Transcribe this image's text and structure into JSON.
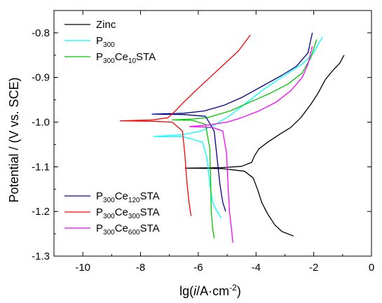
{
  "chart_data": {
    "type": "line",
    "xlabel": "lg(i/A·cm⁻²)",
    "ylabel": "Potential / (V vs. SCE)",
    "xlim": [
      -11,
      0
    ],
    "ylim": [
      -1.3,
      -0.75
    ],
    "xticks": [
      -10,
      -8,
      -6,
      -4,
      -2,
      0
    ],
    "yticks": [
      -1.3,
      -1.2,
      -1.1,
      -1.0,
      -0.9,
      -0.8
    ],
    "grid": false,
    "legend_groups": [
      "top-left",
      "bottom-left"
    ],
    "series": [
      {
        "name": "Zinc",
        "color": "#000000",
        "legend_group": 0,
        "points": [
          [
            -2.7,
            -1.255
          ],
          [
            -3.1,
            -1.245
          ],
          [
            -3.35,
            -1.23
          ],
          [
            -3.6,
            -1.205
          ],
          [
            -3.8,
            -1.18
          ],
          [
            -3.95,
            -1.15
          ],
          [
            -4.1,
            -1.125
          ],
          [
            -4.4,
            -1.11
          ],
          [
            -5.2,
            -1.104
          ],
          [
            -6.45,
            -1.103
          ],
          [
            -5.2,
            -1.102
          ],
          [
            -4.5,
            -1.099
          ],
          [
            -4.15,
            -1.09
          ],
          [
            -4.05,
            -1.075
          ],
          [
            -3.9,
            -1.06
          ],
          [
            -3.6,
            -1.045
          ],
          [
            -3.2,
            -1.028
          ],
          [
            -2.8,
            -1.012
          ],
          [
            -2.45,
            -0.99
          ],
          [
            -2.1,
            -0.96
          ],
          [
            -1.85,
            -0.935
          ],
          [
            -1.6,
            -0.905
          ],
          [
            -1.35,
            -0.885
          ],
          [
            -1.1,
            -0.868
          ],
          [
            -0.95,
            -0.85
          ]
        ]
      },
      {
        "name": "P300",
        "label_parts": [
          {
            "t": "P"
          },
          {
            "t": "300",
            "sub": true
          }
        ],
        "color": "#00ffff",
        "legend_group": 0,
        "points": [
          [
            -5.2,
            -1.215
          ],
          [
            -5.35,
            -1.2
          ],
          [
            -5.5,
            -1.18
          ],
          [
            -5.6,
            -1.14
          ],
          [
            -5.7,
            -1.08
          ],
          [
            -5.85,
            -1.045
          ],
          [
            -6.5,
            -1.033
          ],
          [
            -7.55,
            -1.032
          ],
          [
            -6.5,
            -1.028
          ],
          [
            -5.9,
            -1.02
          ],
          [
            -5.4,
            -1.005
          ],
          [
            -4.9,
            -0.985
          ],
          [
            -4.3,
            -0.955
          ],
          [
            -3.7,
            -0.925
          ],
          [
            -3.0,
            -0.895
          ],
          [
            -2.4,
            -0.87
          ],
          [
            -2.0,
            -0.845
          ],
          [
            -1.8,
            -0.82
          ],
          [
            -1.7,
            -0.81
          ]
        ]
      },
      {
        "name": "P300Ce10STA",
        "label_parts": [
          {
            "t": "P"
          },
          {
            "t": "300",
            "sub": true
          },
          {
            "t": "Ce"
          },
          {
            "t": "10",
            "sub": true
          },
          {
            "t": "STA"
          }
        ],
        "color": "#00c800",
        "legend_group": 0,
        "points": [
          [
            -5.45,
            -1.26
          ],
          [
            -5.5,
            -1.24
          ],
          [
            -5.55,
            -1.2
          ],
          [
            -5.57,
            -1.14
          ],
          [
            -5.6,
            -1.06
          ],
          [
            -5.75,
            -1.005
          ],
          [
            -6.2,
            -0.996
          ],
          [
            -6.9,
            -0.995
          ],
          [
            -6.2,
            -0.993
          ],
          [
            -5.7,
            -0.99
          ],
          [
            -4.9,
            -0.975
          ],
          [
            -4.2,
            -0.955
          ],
          [
            -3.5,
            -0.935
          ],
          [
            -2.9,
            -0.915
          ],
          [
            -2.4,
            -0.89
          ],
          [
            -2.1,
            -0.855
          ],
          [
            -1.9,
            -0.815
          ]
        ]
      },
      {
        "name": "P300Ce120STA",
        "label_parts": [
          {
            "t": "P"
          },
          {
            "t": "300",
            "sub": true
          },
          {
            "t": "Ce"
          },
          {
            "t": "120",
            "sub": true
          },
          {
            "t": "STA"
          }
        ],
        "color": "#00008b",
        "legend_group": 1,
        "points": [
          [
            -5.05,
            -1.2
          ],
          [
            -5.15,
            -1.18
          ],
          [
            -5.25,
            -1.14
          ],
          [
            -5.35,
            -1.08
          ],
          [
            -5.45,
            -1.02
          ],
          [
            -5.75,
            -0.987
          ],
          [
            -6.5,
            -0.983
          ],
          [
            -7.6,
            -0.982
          ],
          [
            -6.5,
            -0.98
          ],
          [
            -5.8,
            -0.975
          ],
          [
            -5.1,
            -0.962
          ],
          [
            -4.5,
            -0.945
          ],
          [
            -3.8,
            -0.92
          ],
          [
            -3.1,
            -0.895
          ],
          [
            -2.6,
            -0.875
          ],
          [
            -2.2,
            -0.845
          ],
          [
            -2.05,
            -0.8
          ]
        ]
      },
      {
        "name": "P300Ce300STA",
        "label_parts": [
          {
            "t": "P"
          },
          {
            "t": "300",
            "sub": true
          },
          {
            "t": "Ce"
          },
          {
            "t": "300",
            "sub": true
          },
          {
            "t": "STA"
          }
        ],
        "color": "#ff0000",
        "legend_group": 1,
        "points": [
          [
            -6.25,
            -1.21
          ],
          [
            -6.32,
            -1.18
          ],
          [
            -6.4,
            -1.13
          ],
          [
            -6.47,
            -1.07
          ],
          [
            -6.55,
            -1.02
          ],
          [
            -6.9,
            -1.0
          ],
          [
            -7.6,
            -0.998
          ],
          [
            -8.7,
            -0.997
          ],
          [
            -7.6,
            -0.995
          ],
          [
            -7.05,
            -0.99
          ],
          [
            -6.8,
            -0.975
          ],
          [
            -6.5,
            -0.955
          ],
          [
            -6.1,
            -0.93
          ],
          [
            -5.6,
            -0.9
          ],
          [
            -5.1,
            -0.87
          ],
          [
            -4.6,
            -0.84
          ],
          [
            -4.2,
            -0.805
          ]
        ]
      },
      {
        "name": "P300Ce600STA",
        "label_parts": [
          {
            "t": "P"
          },
          {
            "t": "300",
            "sub": true
          },
          {
            "t": "Ce"
          },
          {
            "t": "600",
            "sub": true
          },
          {
            "t": "STA"
          }
        ],
        "color": "#ff00ff",
        "legend_group": 1,
        "points": [
          [
            -4.8,
            -1.27
          ],
          [
            -4.85,
            -1.24
          ],
          [
            -4.92,
            -1.2
          ],
          [
            -4.97,
            -1.14
          ],
          [
            -5.02,
            -1.07
          ],
          [
            -5.15,
            -1.02
          ],
          [
            -5.5,
            -1.012
          ],
          [
            -6.3,
            -1.01
          ],
          [
            -5.6,
            -1.006
          ],
          [
            -5.0,
            -1.0
          ],
          [
            -4.5,
            -0.99
          ],
          [
            -3.9,
            -0.975
          ],
          [
            -3.3,
            -0.955
          ],
          [
            -2.8,
            -0.93
          ],
          [
            -2.4,
            -0.9
          ],
          [
            -2.2,
            -0.87
          ],
          [
            -2.05,
            -0.83
          ]
        ]
      }
    ]
  }
}
